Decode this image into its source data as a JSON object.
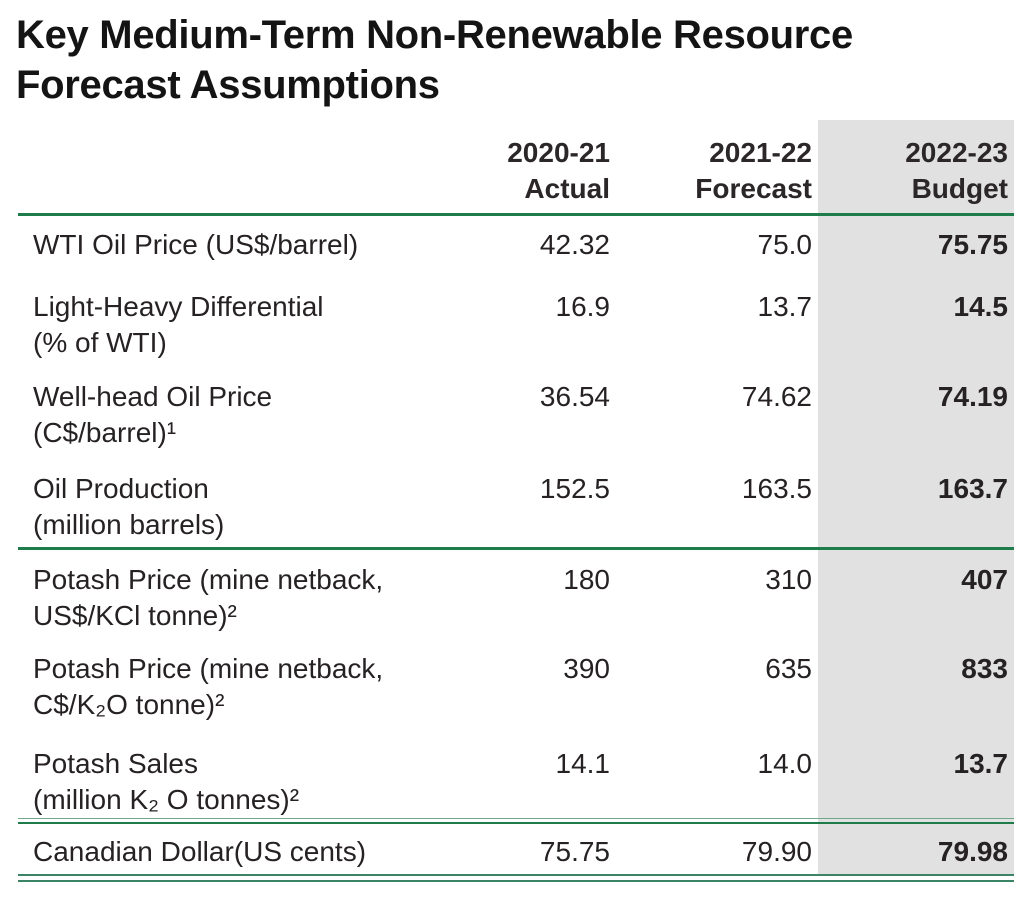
{
  "page": {
    "title_line1": "Key Medium-Term Non-Renewable Resource",
    "title_line2": "Forecast Assumptions"
  },
  "table": {
    "columns": [
      {
        "year": "2020-21",
        "label": "Actual"
      },
      {
        "year": "2021-22",
        "label": "Forecast"
      },
      {
        "year": "2022-23",
        "label": "Budget",
        "highlighted": true
      }
    ],
    "rows": [
      {
        "label_line1": "WTI Oil Price (US$/barrel)",
        "label_line2": "",
        "values": [
          "42.32",
          "75.0",
          "75.75"
        ]
      },
      {
        "label_line1": "Light-Heavy Differential",
        "label_line2": "(% of WTI)",
        "values": [
          "16.9",
          "13.7",
          "14.5"
        ]
      },
      {
        "label_line1": "Well-head Oil Price",
        "label_line2": "(C$/barrel)¹",
        "values": [
          "36.54",
          "74.62",
          "74.19"
        ]
      },
      {
        "label_line1": "Oil Production",
        "label_line2": "(million barrels)",
        "values": [
          "152.5",
          "163.5",
          "163.7"
        ],
        "section_end": "single"
      },
      {
        "label_line1": "Potash Price (mine netback,",
        "label_line2": "US$/KCl tonne)²",
        "values": [
          "180",
          "310",
          "407"
        ]
      },
      {
        "label_line1": "Potash Price (mine netback,",
        "label_line2": "C$/K₂O tonne)²",
        "values": [
          "390",
          "635",
          "833"
        ]
      },
      {
        "label_line1": "Potash Sales",
        "label_line2": "(million K₂ O tonnes)²",
        "values": [
          "14.1",
          "14.0",
          "13.7"
        ],
        "section_end": "double"
      },
      {
        "label_line1": "Canadian Dollar(US cents)",
        "label_line2": "",
        "values": [
          "75.75",
          "79.90",
          "79.98"
        ]
      }
    ]
  },
  "colors": {
    "rule_green": "#1e7b4a",
    "rule_green_light": "#6fa98c",
    "highlight_gray": "#e1e1e1",
    "text": "#262223"
  }
}
